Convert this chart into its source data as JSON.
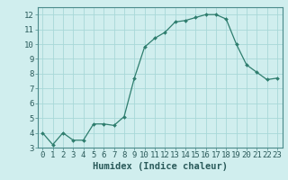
{
  "x": [
    0,
    1,
    2,
    3,
    4,
    5,
    6,
    7,
    8,
    9,
    10,
    11,
    12,
    13,
    14,
    15,
    16,
    17,
    18,
    19,
    20,
    21,
    22,
    23
  ],
  "y": [
    4.0,
    3.2,
    4.0,
    3.5,
    3.5,
    4.6,
    4.6,
    4.5,
    5.1,
    7.7,
    9.8,
    10.4,
    10.8,
    11.5,
    11.6,
    11.8,
    12.0,
    12.0,
    11.7,
    10.0,
    8.6,
    8.1,
    7.6,
    7.7
  ],
  "line_color": "#2e7d6e",
  "marker_color": "#2e7d6e",
  "bg_color": "#d0eeee",
  "grid_color": "#a8d8d8",
  "xlabel": "Humidex (Indice chaleur)",
  "ylim": [
    3,
    12.5
  ],
  "xlim": [
    -0.5,
    23.5
  ],
  "yticks": [
    3,
    4,
    5,
    6,
    7,
    8,
    9,
    10,
    11,
    12
  ],
  "xticks": [
    0,
    1,
    2,
    3,
    4,
    5,
    6,
    7,
    8,
    9,
    10,
    11,
    12,
    13,
    14,
    15,
    16,
    17,
    18,
    19,
    20,
    21,
    22,
    23
  ],
  "xlabel_fontsize": 7.5,
  "tick_fontsize": 6.5
}
